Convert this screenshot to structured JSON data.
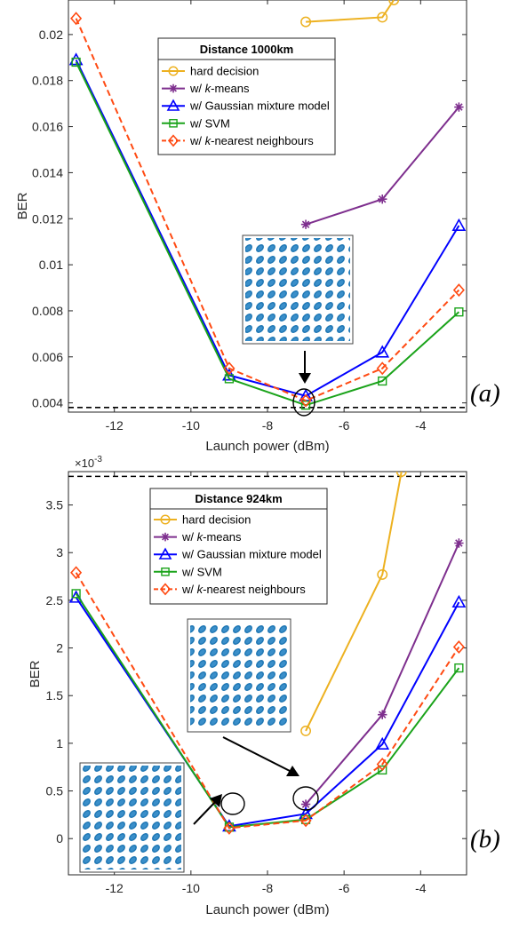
{
  "chart_data": [
    {
      "type": "line",
      "panel_label": "(a)",
      "legend_title": "Distance 1000km",
      "xlabel": "Launch power (dBm)",
      "ylabel": "BER",
      "xlim": [
        -13.2,
        -2.8
      ],
      "ylim": [
        0.0036,
        0.0215
      ],
      "xticks": [
        -12,
        -10,
        -8,
        -6,
        -4
      ],
      "xtick_labels": [
        "-12",
        "-10",
        "-8",
        "-6",
        "-4"
      ],
      "yticks": [
        0.004,
        0.006,
        0.008,
        0.01,
        0.012,
        0.014,
        0.016,
        0.018,
        0.02
      ],
      "ytick_labels": [
        "0.004",
        "0.006",
        "0.008",
        "0.01",
        "0.012",
        "0.014",
        "0.016",
        "0.018",
        "0.02"
      ],
      "threshold": 0.0038,
      "grid": false,
      "legend_position": "top-center",
      "series": [
        {
          "name": "hard decision",
          "color": "#EDB120",
          "marker": "circle",
          "dash": "solid",
          "x": [
            -7,
            -5,
            -4.7
          ],
          "y": [
            0.02055,
            0.02075,
            0.0215
          ]
        },
        {
          "name": "w/ k-means",
          "color": "#7E2F8E",
          "marker": "star",
          "dash": "solid",
          "x": [
            -7,
            -5,
            -3
          ],
          "y": [
            0.01175,
            0.01285,
            0.01685
          ]
        },
        {
          "name": "w/ Gaussian mixture model",
          "color": "#0000FF",
          "marker": "triangle",
          "dash": "solid",
          "x": [
            -13,
            -9,
            -7,
            -5,
            -3
          ],
          "y": [
            0.0189,
            0.0052,
            0.0043,
            0.0062,
            0.0117
          ]
        },
        {
          "name": "w/ SVM",
          "color": "#1AA31A",
          "marker": "square",
          "dash": "solid",
          "x": [
            -13,
            -9,
            -7,
            -5,
            -3
          ],
          "y": [
            0.0188,
            0.00505,
            0.0039,
            0.00495,
            0.00795
          ]
        },
        {
          "name": "w/ k-nearest neighbours",
          "color": "#FF4A12",
          "marker": "diamond",
          "dash": "dashed",
          "x": [
            -13,
            -9,
            -7,
            -5,
            -3
          ],
          "y": [
            0.0207,
            0.0055,
            0.0041,
            0.0055,
            0.0089
          ]
        }
      ]
    },
    {
      "type": "line",
      "panel_label": "(b)",
      "legend_title": "Distance 924km",
      "xlabel": "Launch power (dBm)",
      "ylabel": "BER",
      "exponent_label": "×10",
      "exponent_power": "-3",
      "xlim": [
        -13.2,
        -2.8
      ],
      "ylim": [
        -0.38,
        3.85
      ],
      "xticks": [
        -12,
        -10,
        -8,
        -6,
        -4
      ],
      "xtick_labels": [
        "-12",
        "-10",
        "-8",
        "-6",
        "-4"
      ],
      "yticks": [
        0,
        0.5,
        1,
        1.5,
        2,
        2.5,
        3,
        3.5
      ],
      "ytick_labels": [
        "0",
        "0.5",
        "1",
        "1.5",
        "2",
        "2.5",
        "3",
        "3.5"
      ],
      "threshold": 3.8,
      "grid": false,
      "legend_position": "top-center",
      "series": [
        {
          "name": "hard decision",
          "color": "#EDB120",
          "marker": "circle",
          "dash": "solid",
          "x": [
            -7,
            -5,
            -4.5
          ],
          "y": [
            1.13,
            2.77,
            3.85
          ]
        },
        {
          "name": "w/ k-means",
          "color": "#7E2F8E",
          "marker": "star",
          "dash": "solid",
          "x": [
            -7,
            -5,
            -3
          ],
          "y": [
            0.36,
            1.3,
            3.1
          ]
        },
        {
          "name": "w/ Gaussian mixture model",
          "color": "#0000FF",
          "marker": "triangle",
          "dash": "solid",
          "x": [
            -13,
            -9,
            -7,
            -5,
            -3
          ],
          "y": [
            2.53,
            0.13,
            0.26,
            0.99,
            2.48
          ]
        },
        {
          "name": "w/ SVM",
          "color": "#1AA31A",
          "marker": "square",
          "dash": "solid",
          "x": [
            -13,
            -9,
            -7,
            -5,
            -3
          ],
          "y": [
            2.57,
            0.12,
            0.2,
            0.72,
            1.79
          ]
        },
        {
          "name": "w/ k-nearest neighbours",
          "color": "#FF4A12",
          "marker": "diamond",
          "dash": "dashed",
          "x": [
            -13,
            -9,
            -7,
            -5,
            -3
          ],
          "y": [
            2.79,
            0.11,
            0.19,
            0.78,
            2.01
          ]
        }
      ]
    }
  ]
}
